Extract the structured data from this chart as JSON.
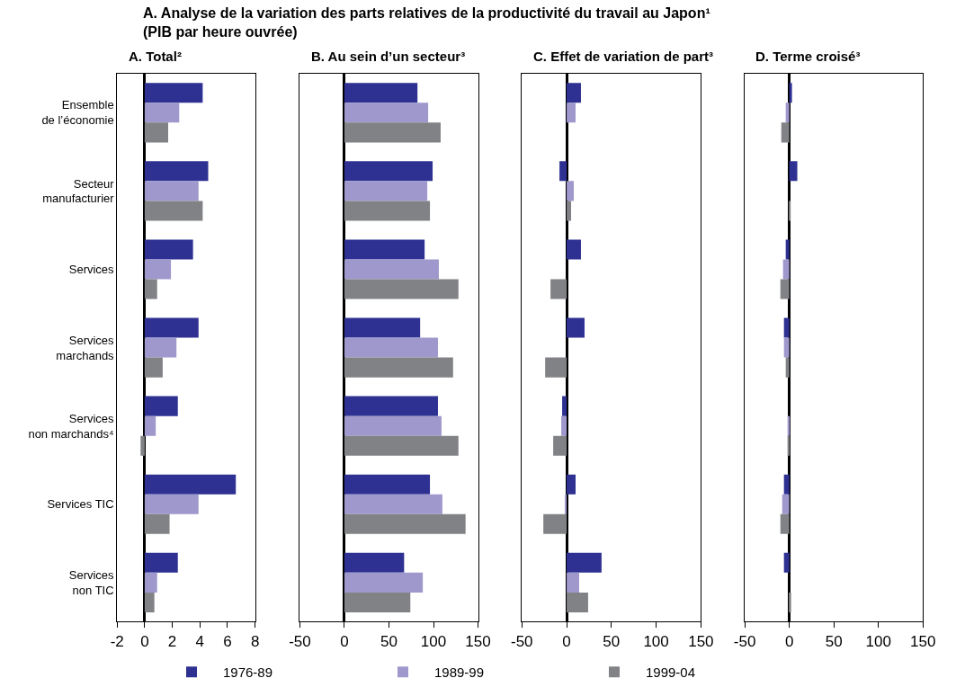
{
  "chart_data": [
    {
      "type": "bar",
      "orientation": "horizontal",
      "title": "A. Total²",
      "annotations": [
        "A. Analyse de la variation des parts relatives de la productivité du travail au Japon¹\n(PIB par heure ouvrée)"
      ],
      "categories": [
        "Ensemble\nde l’économie",
        "Secteur\nmanufacturier",
        "Services",
        "Services\nmarchands",
        "Services\nnon marchands⁴",
        "Services TIC",
        "Services\nnon TIC"
      ],
      "series": [
        {
          "name": "1976-89",
          "color": "#2e3192",
          "values": [
            4.2,
            4.6,
            3.5,
            3.9,
            2.4,
            6.6,
            2.4
          ]
        },
        {
          "name": "1989-99",
          "color": "#9e98cc",
          "values": [
            2.5,
            3.9,
            1.9,
            2.3,
            0.8,
            3.9,
            0.9
          ]
        },
        {
          "name": "1999-04",
          "color": "#808285",
          "values": [
            1.7,
            4.2,
            0.9,
            1.3,
            -0.3,
            1.8,
            0.7
          ]
        }
      ],
      "xlim": [
        -2,
        8
      ],
      "xticks": [
        -2,
        0,
        2,
        4,
        6,
        8
      ],
      "legend": "bottom"
    },
    {
      "type": "bar",
      "orientation": "horizontal",
      "title": "B. Au sein d’un secteur³",
      "tick_labels": "x",
      "categories": [
        null,
        null,
        null,
        null,
        null,
        null,
        null
      ],
      "series": [
        {
          "name": "1976-89",
          "color": "#2e3192",
          "values": [
            82,
            99,
            90,
            85,
            105,
            96,
            67
          ]
        },
        {
          "name": "1989-99",
          "color": "#9e98cc",
          "values": [
            94,
            93,
            106,
            105,
            109,
            110,
            88
          ]
        },
        {
          "name": "1999-04",
          "color": "#808285",
          "values": [
            108,
            96,
            128,
            122,
            128,
            136,
            74
          ]
        }
      ],
      "xlim": [
        -50,
        150
      ],
      "xticks": [
        -50,
        0,
        50,
        100,
        150
      ]
    },
    {
      "type": "bar",
      "orientation": "horizontal",
      "title": "C. Effet de variation de part³",
      "tick_labels": "x",
      "categories": [
        null,
        null,
        null,
        null,
        null,
        null,
        null
      ],
      "series": [
        {
          "name": "1976-89",
          "color": "#2e3192",
          "values": [
            16,
            -8,
            16,
            20,
            -5,
            10,
            39
          ]
        },
        {
          "name": "1989-99",
          "color": "#9e98cc",
          "values": [
            10,
            8,
            0,
            0,
            -6,
            -2,
            14
          ]
        },
        {
          "name": "1999-04",
          "color": "#808285",
          "values": [
            0,
            5,
            -18,
            -24,
            -15,
            -26,
            24
          ]
        }
      ],
      "xlim": [
        -50,
        150
      ],
      "xticks": [
        -50,
        0,
        50,
        100,
        150
      ]
    },
    {
      "type": "bar",
      "orientation": "horizontal",
      "title": "D. Terme croisé³",
      "tick_labels": "x",
      "categories": [
        null,
        null,
        null,
        null,
        null,
        null,
        null
      ],
      "series": [
        {
          "name": "1976-89",
          "color": "#2e3192",
          "values": [
            3,
            9,
            -4,
            -6,
            0,
            -6,
            -6
          ]
        },
        {
          "name": "1989-99",
          "color": "#9e98cc",
          "values": [
            -4,
            0,
            -7,
            -6,
            -2,
            -8,
            0
          ]
        },
        {
          "name": "1999-04",
          "color": "#808285",
          "values": [
            -9,
            1,
            -10,
            -4,
            -2,
            -10,
            2
          ]
        }
      ],
      "xlim": [
        -50,
        150
      ],
      "xticks": [
        -50,
        0,
        50,
        100,
        150
      ]
    }
  ]
}
